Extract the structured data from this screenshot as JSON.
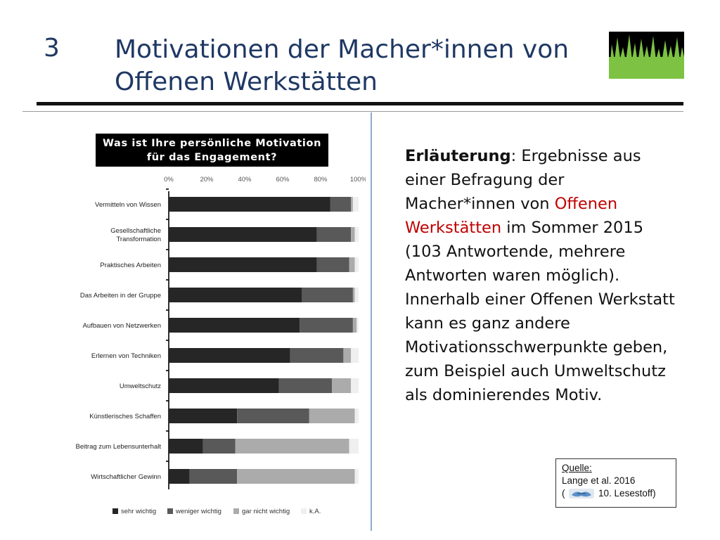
{
  "slide": {
    "number": "3",
    "title_line1": "Motivationen der Macher*innen von",
    "title_line2": "Offenen Werkstätten"
  },
  "chart_data": {
    "type": "bar",
    "stacked": true,
    "orientation": "horizontal",
    "title_line1": "Was ist Ihre persönliche Motivation",
    "title_line2": "für das Engagement?",
    "categories": [
      "Vermitteln von Wissen",
      "Gesellschaftliche Transformation",
      "Praktisches Arbeiten",
      "Das Arbeiten in der Gruppe",
      "Aufbauen von Netzwerken",
      "Erlernen von Techniken",
      "Umweltschutz",
      "Künstlerisches Schaffen",
      "Beitrag zum Lebensunterhalt",
      "Wirtschaftlicher Gewinn"
    ],
    "category_label_lines": [
      [
        "Vermitteln von Wissen"
      ],
      [
        "Gesellschaftliche",
        "Transformation"
      ],
      [
        "Praktisches Arbeiten"
      ],
      [
        "Das Arbeiten in der Gruppe"
      ],
      [
        "Aufbauen von Netzwerken"
      ],
      [
        "Erlernen von Techniken"
      ],
      [
        "Umweltschutz"
      ],
      [
        "Künstlerisches Schaffen"
      ],
      [
        "Beitrag zum Lebensunterhalt"
      ],
      [
        "Wirtschaftlicher Gewinn"
      ]
    ],
    "series": [
      {
        "name": "sehr wichtig",
        "color": "#262626",
        "values": [
          85,
          78,
          78,
          70,
          69,
          64,
          58,
          36,
          18,
          11
        ]
      },
      {
        "name": "weniger wichtig",
        "color": "#595959",
        "values": [
          11,
          18,
          17,
          27,
          28,
          28,
          28,
          38,
          17,
          25
        ]
      },
      {
        "name": "gar nicht wichtig",
        "color": "#ababab",
        "values": [
          1,
          2,
          3,
          1,
          2,
          4,
          10,
          24,
          60,
          62
        ]
      },
      {
        "name": "k.A.",
        "color": "#efefef",
        "values": [
          3,
          2,
          2,
          2,
          1,
          4,
          4,
          2,
          5,
          2
        ]
      }
    ],
    "x_ticks": [
      "0%",
      "20%",
      "40%",
      "60%",
      "80%",
      "100%"
    ],
    "xlim": [
      0,
      100
    ],
    "grid": false,
    "legend_position": "bottom"
  },
  "explanation": {
    "bold": "Erläuterung",
    "part1": ": Ergebnisse aus einer Befragung der Macher*innen von ",
    "highlight": "Offenen Werkstätten",
    "part2": "  im Sommer 2015 (103 Antwortende, mehrere Antworten waren möglich). Innerhalb einer Offenen Werkstatt kann es ganz andere Motivationsschwerpunkte geben, zum Beispiel auch Umweltschutz als dominierendes Motiv."
  },
  "source": {
    "label": "Quelle:",
    "citation": "Lange et al. 2016",
    "open": "(",
    "ref": "10. Lesestoff)"
  },
  "colors": {
    "title": "#1f3864",
    "highlight": "#c00000",
    "grass": "#7dc242"
  },
  "icons": {
    "logo": "grass-logo-icon",
    "source": "handshake-icon"
  }
}
